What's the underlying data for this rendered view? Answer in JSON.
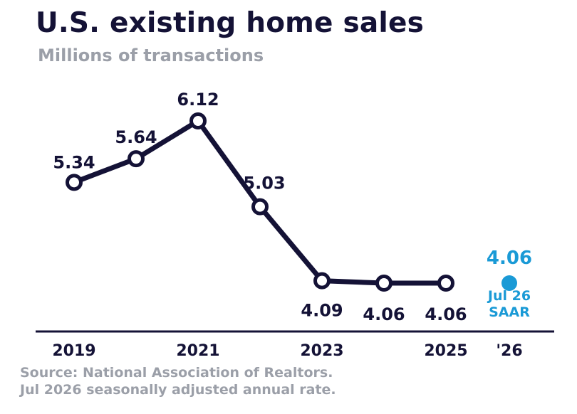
{
  "header": {
    "title": "U.S. existing home sales",
    "subtitle": "Millions of transactions"
  },
  "footer": {
    "source_line_1": "Source: National Association of Realtors.",
    "source_line_2": "Jul 2026 seasonally adjusted annual rate."
  },
  "colors": {
    "series": "#141236",
    "highlight": "#1a9ad6",
    "muted": "#9b9fa8",
    "axis": "#141236"
  },
  "chart_data": {
    "type": "line",
    "title": "U.S. existing home sales",
    "subtitle": "Millions of transactions",
    "xlabel": "",
    "ylabel": "",
    "ylim": [
      3.7,
      6.3
    ],
    "grid": false,
    "legend": "none",
    "x_ticks": [
      "2019",
      "2021",
      "2023",
      "2025",
      "'26"
    ],
    "series": [
      {
        "x": [
          2019,
          2020,
          2021,
          2022,
          2023,
          2024,
          2025
        ],
        "values": [
          5.34,
          5.64,
          6.12,
          5.03,
          4.09,
          4.06,
          4.06
        ],
        "labels": [
          "5.34",
          "5.64",
          "6.12",
          "5.03",
          "4.09",
          "4.06",
          "4.06"
        ]
      }
    ],
    "highlight": {
      "x": "'26",
      "value": 4.06,
      "label": "4.06",
      "note_line_1": "Jul 26",
      "note_line_2": "SAAR"
    }
  }
}
